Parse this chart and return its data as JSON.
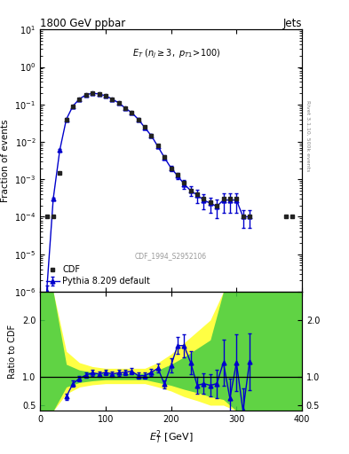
{
  "title": "1800 GeV ppbar",
  "title_right": "Jets",
  "watermark": "CDF_1994_S2952106",
  "right_label": "Rivet 3.1.10, 500k events",
  "ylabel_main": "Fraction of events",
  "ylabel_ratio": "Ratio to CDF",
  "xmin": 0,
  "xmax": 400,
  "cdf_x": [
    10,
    20,
    30,
    40,
    50,
    60,
    70,
    80,
    90,
    100,
    110,
    120,
    130,
    140,
    150,
    160,
    170,
    180,
    190,
    200,
    210,
    220,
    230,
    240,
    250,
    260,
    270,
    280,
    290,
    300,
    310,
    320,
    375,
    385
  ],
  "cdf_y": [
    0.0001,
    0.0001,
    0.0015,
    0.04,
    0.09,
    0.14,
    0.18,
    0.2,
    0.19,
    0.17,
    0.14,
    0.11,
    0.08,
    0.06,
    0.04,
    0.025,
    0.015,
    0.008,
    0.004,
    0.002,
    0.0013,
    0.0008,
    0.0005,
    0.0004,
    0.0003,
    0.00025,
    0.0002,
    0.0003,
    0.0003,
    0.0003,
    0.0001,
    0.0001,
    0.0001,
    0.0001
  ],
  "pythia_x": [
    10,
    20,
    30,
    40,
    50,
    60,
    70,
    80,
    90,
    100,
    110,
    120,
    130,
    140,
    150,
    160,
    170,
    180,
    190,
    200,
    210,
    220,
    230,
    240,
    250,
    260,
    270,
    280,
    290,
    300,
    310,
    320
  ],
  "pythia_y": [
    1e-06,
    0.0003,
    0.006,
    0.04,
    0.09,
    0.14,
    0.18,
    0.2,
    0.19,
    0.17,
    0.14,
    0.11,
    0.08,
    0.06,
    0.04,
    0.024,
    0.0145,
    0.0075,
    0.0038,
    0.002,
    0.00125,
    0.00075,
    0.0005,
    0.00038,
    0.00028,
    0.00023,
    0.00019,
    0.00028,
    0.00028,
    0.00028,
    0.0001,
    0.0001
  ],
  "pythia_yerr": [
    5e-07,
    3e-05,
    0.0005,
    0.003,
    0.006,
    0.008,
    0.008,
    0.008,
    0.008,
    0.008,
    0.007,
    0.006,
    0.005,
    0.004,
    0.003,
    0.002,
    0.0015,
    0.0008,
    0.0005,
    0.0003,
    0.00025,
    0.0002,
    0.00015,
    0.00015,
    0.00012,
    0.0001,
    0.0001,
    0.00015,
    0.00015,
    0.00015,
    5e-05,
    5e-05
  ],
  "ratio_x": [
    20,
    30,
    40,
    50,
    60,
    70,
    80,
    90,
    100,
    110,
    120,
    130,
    140,
    150,
    160,
    170,
    180,
    190,
    200,
    210,
    220,
    230,
    240,
    250,
    260,
    270,
    280,
    290,
    300,
    310,
    320,
    330
  ],
  "ratio_y": [
    null,
    null,
    0.65,
    0.88,
    0.97,
    1.03,
    1.07,
    1.05,
    1.08,
    1.05,
    1.07,
    1.08,
    1.1,
    1.02,
    1.02,
    1.08,
    1.15,
    0.87,
    1.2,
    1.55,
    1.55,
    1.25,
    0.85,
    0.88,
    0.85,
    0.88,
    1.25,
    0.62,
    1.25,
    0.4,
    1.27,
    null
  ],
  "ratio_yerr": [
    null,
    null,
    0.06,
    0.06,
    0.05,
    0.05,
    0.05,
    0.05,
    0.05,
    0.05,
    0.05,
    0.05,
    0.06,
    0.05,
    0.05,
    0.06,
    0.08,
    0.07,
    0.12,
    0.15,
    0.2,
    0.2,
    0.15,
    0.18,
    0.2,
    0.25,
    0.4,
    0.35,
    0.5,
    0.4,
    0.5,
    null
  ],
  "band_yellow_x": [
    0,
    20,
    20,
    40,
    40,
    60,
    60,
    80,
    80,
    100,
    100,
    120,
    120,
    140,
    140,
    160,
    160,
    180,
    180,
    200,
    200,
    220,
    220,
    240,
    240,
    260,
    260,
    280,
    280,
    300,
    300,
    320,
    320,
    400,
    400
  ],
  "band_yellow_bot": [
    0.4,
    0.4,
    0.4,
    0.7,
    0.7,
    0.82,
    0.82,
    0.86,
    0.86,
    0.88,
    0.88,
    0.88,
    0.88,
    0.88,
    0.88,
    0.88,
    0.88,
    0.82,
    0.82,
    0.75,
    0.75,
    0.65,
    0.65,
    0.58,
    0.58,
    0.5,
    0.5,
    0.5,
    0.5,
    0.4,
    0.4,
    0.4,
    0.4,
    0.4,
    0.4
  ],
  "band_yellow_top": [
    2.5,
    2.5,
    2.5,
    1.45,
    1.45,
    1.25,
    1.25,
    1.18,
    1.18,
    1.15,
    1.15,
    1.15,
    1.15,
    1.15,
    1.15,
    1.15,
    1.15,
    1.25,
    1.25,
    1.4,
    1.4,
    1.6,
    1.6,
    1.8,
    1.8,
    2.0,
    2.0,
    2.5,
    2.5,
    2.5,
    2.5,
    2.5,
    2.5,
    2.5,
    2.5
  ],
  "band_green_x": [
    0,
    20,
    20,
    40,
    40,
    60,
    60,
    80,
    80,
    100,
    100,
    120,
    120,
    140,
    140,
    160,
    160,
    180,
    180,
    200,
    200,
    220,
    220,
    240,
    240,
    260,
    260,
    280,
    280,
    300,
    300,
    320,
    320,
    400,
    400
  ],
  "band_green_bot": [
    0.4,
    0.4,
    0.4,
    0.82,
    0.82,
    0.9,
    0.9,
    0.93,
    0.93,
    0.95,
    0.95,
    0.95,
    0.95,
    0.95,
    0.95,
    0.95,
    0.95,
    0.9,
    0.9,
    0.85,
    0.85,
    0.78,
    0.78,
    0.72,
    0.72,
    0.65,
    0.65,
    0.6,
    0.6,
    0.4,
    0.4,
    0.4,
    0.4,
    0.4,
    0.4
  ],
  "band_green_top": [
    2.5,
    2.5,
    2.5,
    1.22,
    1.22,
    1.12,
    1.12,
    1.08,
    1.08,
    1.06,
    1.06,
    1.06,
    1.06,
    1.06,
    1.06,
    1.06,
    1.06,
    1.12,
    1.12,
    1.22,
    1.22,
    1.35,
    1.35,
    1.5,
    1.5,
    1.65,
    1.65,
    2.5,
    2.5,
    2.5,
    2.5,
    2.5,
    2.5,
    2.5,
    2.5
  ],
  "color_cdf": "#222222",
  "color_pythia": "#0000cc",
  "color_yellow": "#ffff44",
  "color_green": "#44cc44",
  "marker_cdf": "s",
  "marker_pythia": "^",
  "ratio_ylim": [
    0.4,
    2.5
  ],
  "ratio_yticks": [
    0.5,
    1.0,
    2.0
  ],
  "background_color": "#ffffff"
}
